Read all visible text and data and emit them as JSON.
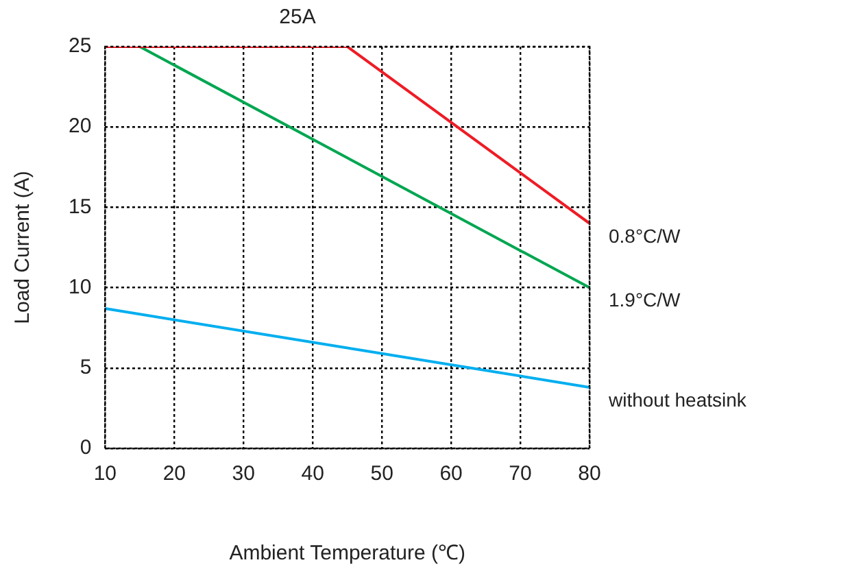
{
  "chart_data": {
    "type": "line",
    "title": "25A",
    "xlabel": "Ambient Temperature (℃)",
    "ylabel": "Load Current (A)",
    "xlim": [
      10,
      80
    ],
    "xticks": [
      10,
      20,
      30,
      40,
      50,
      60,
      70,
      80
    ],
    "ylim": [
      0,
      25
    ],
    "yticks": [
      0,
      5,
      10,
      15,
      20,
      25
    ],
    "grid": true,
    "legend": false,
    "marker": "none",
    "line_style": "solid",
    "series": [
      {
        "name": "0.8°C/W",
        "color": "#ee1c25",
        "x": [
          10,
          45,
          80
        ],
        "values": [
          25,
          25,
          14
        ]
      },
      {
        "name": "1.9°C/W",
        "color": "#00a651",
        "x": [
          15,
          80
        ],
        "values": [
          25,
          10
        ]
      },
      {
        "name": "without heatsink",
        "color": "#00aeef",
        "x": [
          10,
          80
        ],
        "values": [
          8.7,
          3.8
        ]
      }
    ]
  }
}
